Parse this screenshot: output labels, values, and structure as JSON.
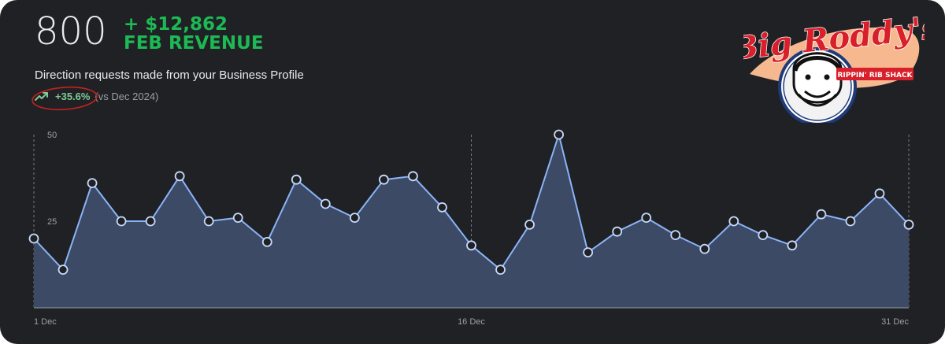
{
  "header": {
    "big_number": "800",
    "revenue_amount": "+ $12,862",
    "revenue_label": "FEB REVENUE",
    "subtitle": "Direction requests made from your Business Profile",
    "trend_pct": "+35.6%",
    "trend_vs": "(vs Dec 2024)",
    "trend_icon": "trending-up-icon"
  },
  "logo": {
    "title": "Big Roddy's",
    "tagline": "RIPPIN' RIB SHACK"
  },
  "colors": {
    "background": "#202124",
    "accent_green": "#1db954",
    "line": "#8ab4f8",
    "area_fill": "#3c4a66",
    "annotation": "#c5221f"
  },
  "chart_data": {
    "type": "area",
    "x": [
      "1 Dec",
      "2 Dec",
      "3 Dec",
      "4 Dec",
      "5 Dec",
      "6 Dec",
      "7 Dec",
      "8 Dec",
      "9 Dec",
      "10 Dec",
      "11 Dec",
      "12 Dec",
      "13 Dec",
      "14 Dec",
      "15 Dec",
      "16 Dec",
      "17 Dec",
      "18 Dec",
      "19 Dec",
      "20 Dec",
      "21 Dec",
      "22 Dec",
      "23 Dec",
      "24 Dec",
      "25 Dec",
      "26 Dec",
      "27 Dec",
      "28 Dec",
      "29 Dec",
      "30 Dec",
      "31 Dec"
    ],
    "values": [
      20,
      11,
      36,
      25,
      25,
      38,
      25,
      26,
      19,
      37,
      30,
      26,
      37,
      38,
      29,
      18,
      11,
      24,
      50,
      16,
      22,
      26,
      21,
      17,
      25,
      21,
      18,
      27,
      25,
      33,
      24
    ],
    "xticks": [
      "1 Dec",
      "16 Dec",
      "31 Dec"
    ],
    "yticks": [
      "25",
      "50"
    ],
    "ylim": [
      0,
      50
    ],
    "grid": "vertical-dashed"
  }
}
